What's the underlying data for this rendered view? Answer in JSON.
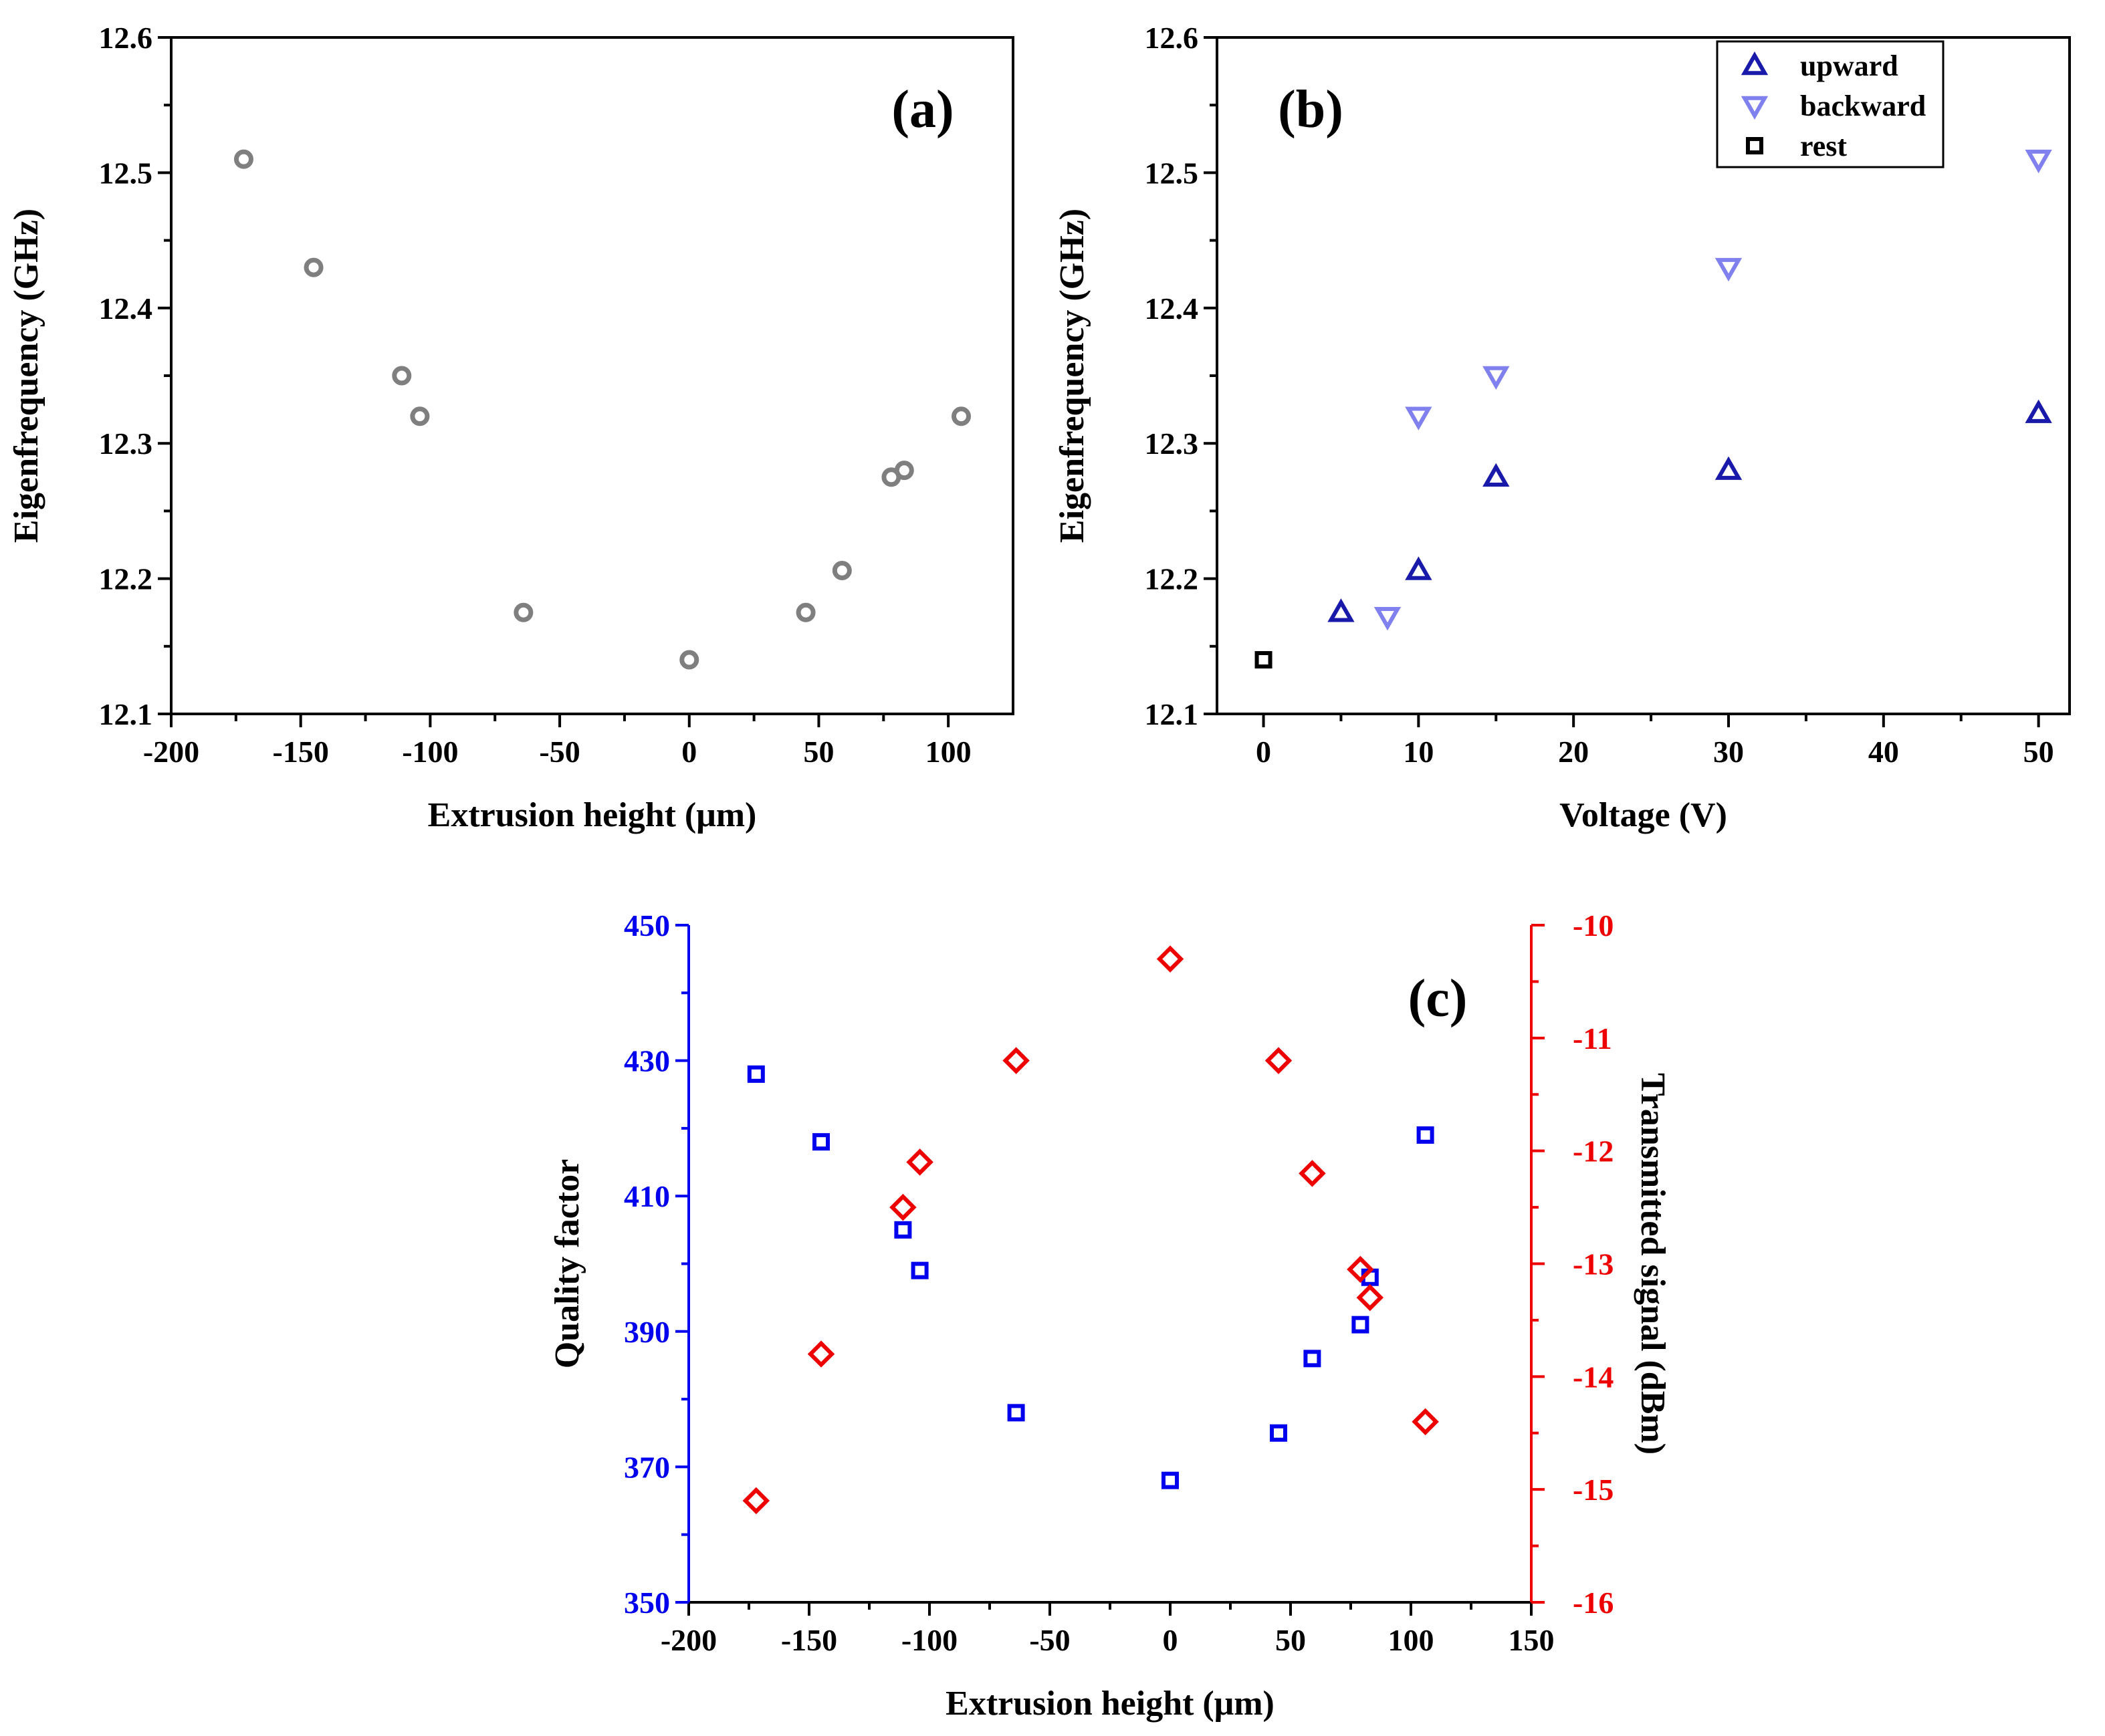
{
  "chart_data": [
    {
      "id": "a",
      "type": "scatter",
      "panel_label": "(a)",
      "xlabel": "Extrusion height (μm)",
      "ylabel": "Eigenfrequency (GHz)",
      "xlim": [
        -200,
        125
      ],
      "ylim": [
        12.1,
        12.6
      ],
      "xticks": [
        -200,
        -150,
        -100,
        -50,
        0,
        50,
        100
      ],
      "yticks": [
        12.1,
        12.2,
        12.3,
        12.4,
        12.5,
        12.6
      ],
      "series": [
        {
          "name": "eigenfrequency",
          "marker": "circle",
          "color": "#7f7f7f",
          "x": [
            -172,
            -145,
            -111,
            -104,
            -64,
            0,
            45,
            59,
            78,
            83,
            105
          ],
          "y": [
            12.51,
            12.43,
            12.35,
            12.32,
            12.175,
            12.14,
            12.175,
            12.206,
            12.275,
            12.28,
            12.32
          ]
        }
      ]
    },
    {
      "id": "b",
      "type": "scatter",
      "panel_label": "(b)",
      "xlabel": "Voltage (V)",
      "ylabel": "Eigenfrequency (GHz)",
      "xlim": [
        -3,
        52
      ],
      "ylim": [
        12.1,
        12.6
      ],
      "xticks": [
        0,
        10,
        20,
        30,
        40,
        50
      ],
      "yticks": [
        12.1,
        12.2,
        12.3,
        12.4,
        12.5,
        12.6
      ],
      "legend_position": "top-right",
      "series": [
        {
          "name": "upward",
          "marker": "triangle-up",
          "color": "#1a1aaa",
          "x": [
            5,
            10,
            15,
            30,
            50
          ],
          "y": [
            12.175,
            12.206,
            12.275,
            12.28,
            12.322
          ]
        },
        {
          "name": "backward",
          "marker": "triangle-down",
          "color": "#8080ee",
          "x": [
            8,
            10,
            15,
            30,
            50
          ],
          "y": [
            12.172,
            12.32,
            12.35,
            12.43,
            12.51
          ]
        },
        {
          "name": "rest",
          "marker": "square",
          "color": "#000000",
          "x": [
            0
          ],
          "y": [
            12.14
          ]
        }
      ]
    },
    {
      "id": "c",
      "type": "scatter",
      "panel_label": "(c)",
      "xlabel": "Extrusion height (μm)",
      "ylabel": "Quality factor",
      "y2label": "Transmitted signal (dBm)",
      "xlim": [
        -200,
        150
      ],
      "ylim": [
        350,
        450
      ],
      "y2lim": [
        -16,
        -10
      ],
      "xticks": [
        -200,
        -150,
        -100,
        -50,
        0,
        50,
        100,
        150
      ],
      "yticks": [
        350,
        370,
        390,
        410,
        430,
        450
      ],
      "y2ticks": [
        -16,
        -15,
        -14,
        -13,
        -12,
        -11,
        -10
      ],
      "left_axis_color": "#0000ee",
      "right_axis_color": "#ee0000",
      "series": [
        {
          "name": "Quality factor",
          "axis": "left",
          "marker": "square",
          "color": "#0000ee",
          "x": [
            -172,
            -145,
            -111,
            -104,
            -64,
            0,
            45,
            59,
            79,
            83,
            106
          ],
          "y": [
            428,
            418,
            405,
            399,
            378,
            368,
            375,
            386,
            391,
            398,
            419
          ]
        },
        {
          "name": "Transmitted signal",
          "axis": "right",
          "marker": "diamond",
          "color": "#ee0000",
          "x": [
            -172,
            -145,
            -111,
            -104,
            -64,
            0,
            45,
            59,
            79,
            83,
            106
          ],
          "y": [
            -15.1,
            -13.8,
            -12.5,
            -12.1,
            -11.2,
            -10.3,
            -11.2,
            -12.2,
            -13.05,
            -13.3,
            -14.4
          ]
        }
      ]
    }
  ]
}
